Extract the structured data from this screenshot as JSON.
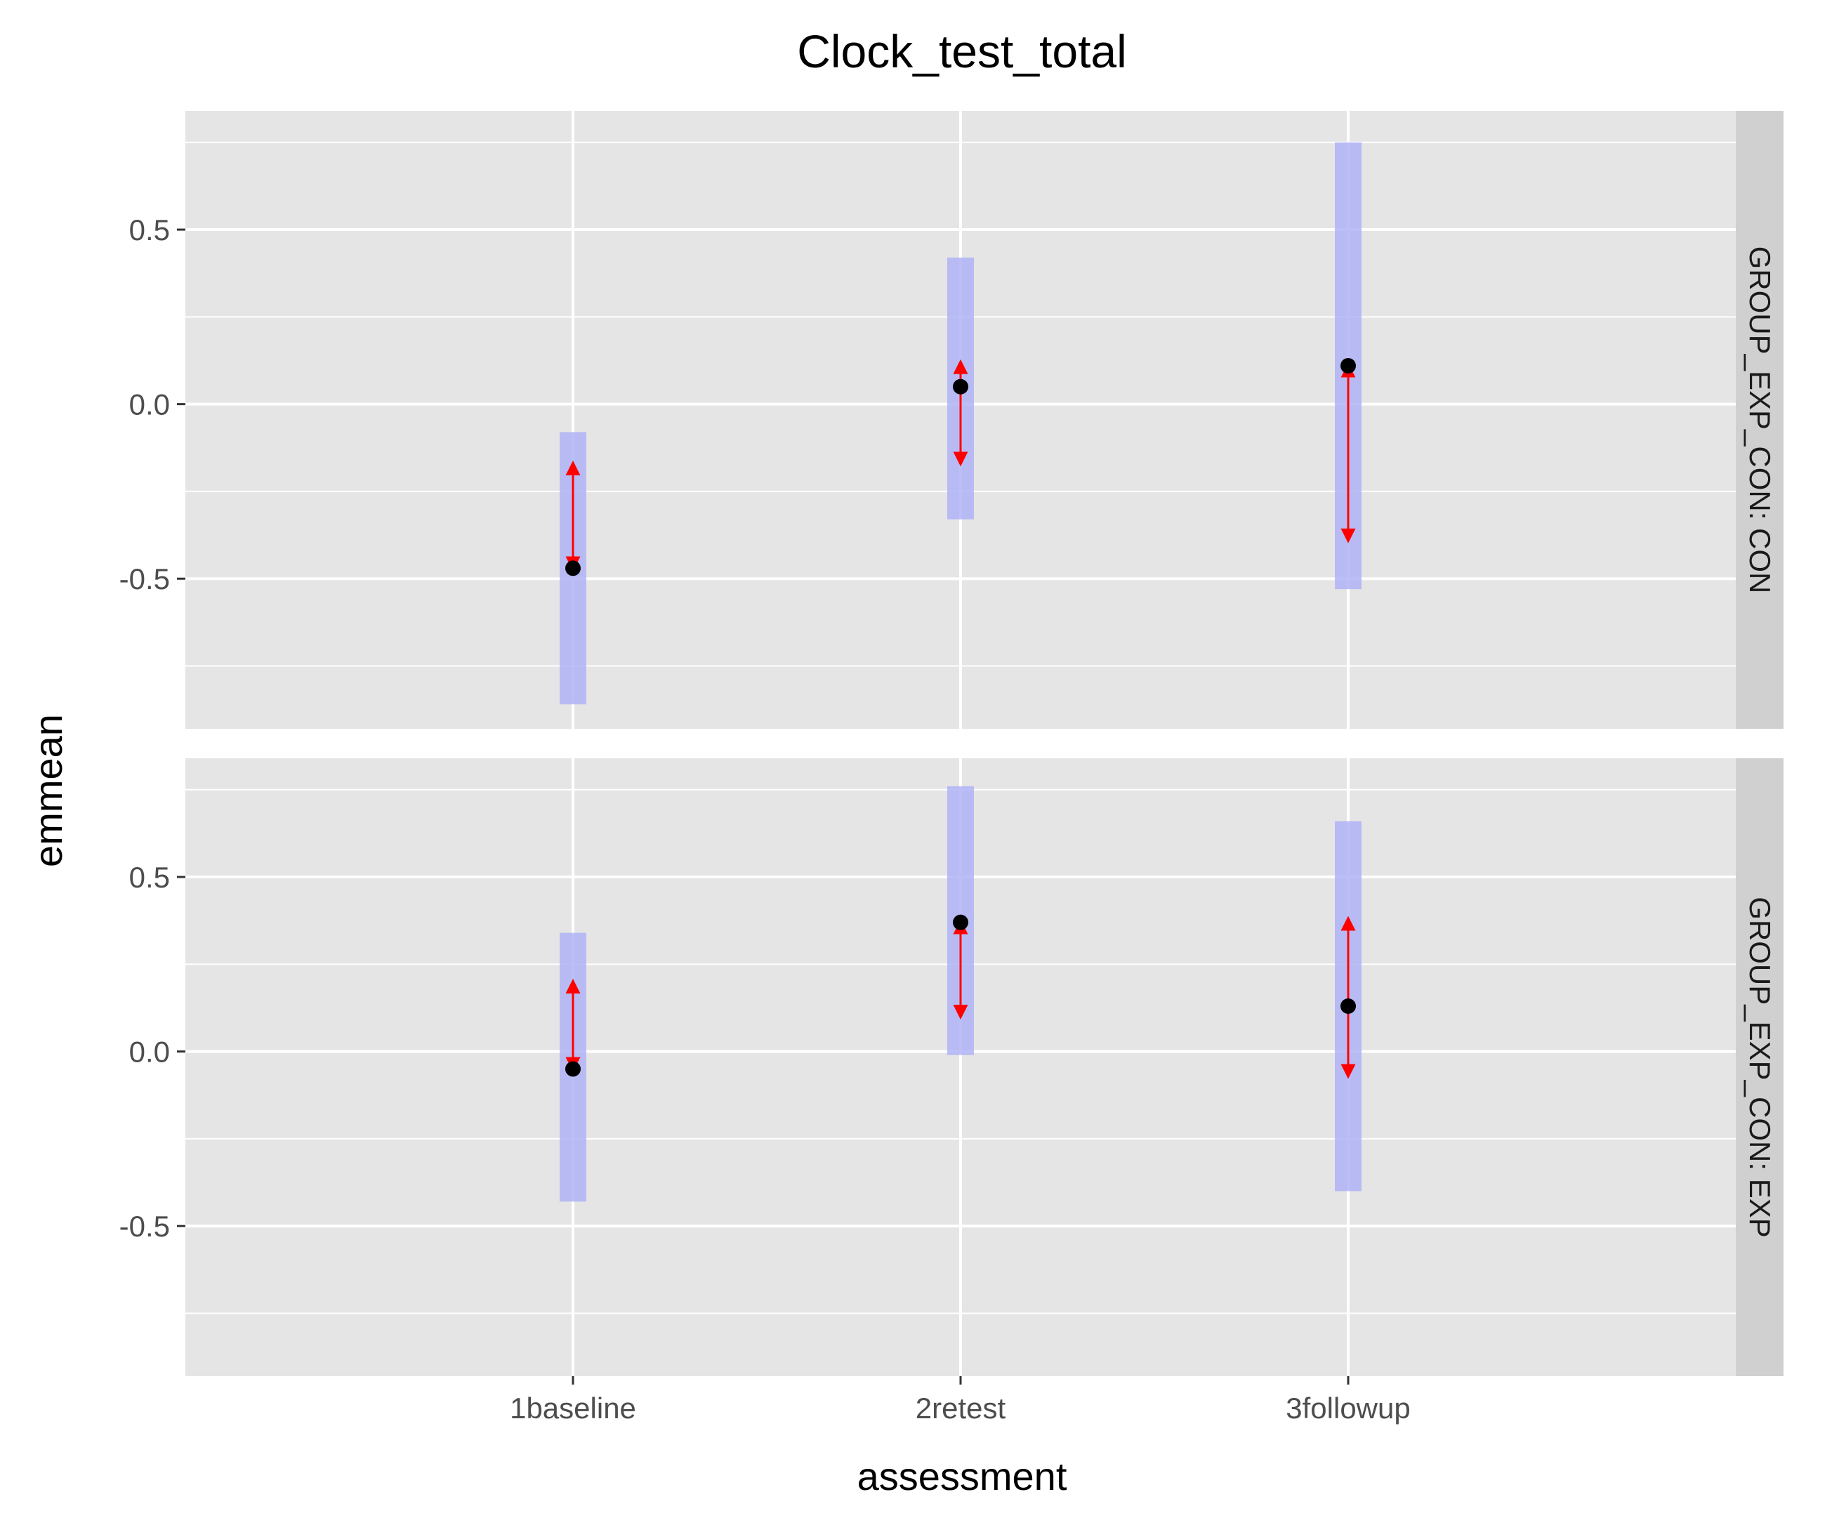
{
  "chart_data": {
    "type": "scatter",
    "title": "Clock_test_total",
    "xlabel": "assessment",
    "ylabel": "emmean",
    "categories": [
      "1baseline",
      "2retest",
      "3followup"
    ],
    "ylim": [
      -0.93,
      0.84
    ],
    "yticks": [
      -0.5,
      0.0,
      0.5
    ],
    "ytick_labels": [
      "-0.5",
      "0.0",
      "0.5"
    ],
    "grid": true,
    "colors": {
      "panel_bg": "#e5e5e5",
      "grid": "#ffffff",
      "strip_bg": "#d0d0d0",
      "ci_bar": "#b0b4f6",
      "arrow": "#ff0000",
      "point": "#000000"
    },
    "panels": [
      {
        "strip": "GROUP_EXP_CON: CON",
        "points": [
          {
            "x": "1baseline",
            "emmean": -0.47,
            "ci": [
              -0.86,
              -0.08
            ],
            "arrow": [
              -0.47,
              -0.17
            ]
          },
          {
            "x": "2retest",
            "emmean": 0.05,
            "ci": [
              -0.33,
              0.42
            ],
            "arrow": [
              -0.17,
              0.12
            ]
          },
          {
            "x": "3followup",
            "emmean": 0.11,
            "ci": [
              -0.53,
              0.75
            ],
            "arrow": [
              -0.39,
              0.11
            ]
          }
        ]
      },
      {
        "strip": "GROUP_EXP_CON: EXP",
        "points": [
          {
            "x": "1baseline",
            "emmean": -0.05,
            "ci": [
              -0.43,
              0.34
            ],
            "arrow": [
              -0.05,
              0.2
            ]
          },
          {
            "x": "2retest",
            "emmean": 0.37,
            "ci": [
              -0.01,
              0.76
            ],
            "arrow": [
              0.1,
              0.37
            ]
          },
          {
            "x": "3followup",
            "emmean": 0.13,
            "ci": [
              -0.4,
              0.66
            ],
            "arrow": [
              -0.07,
              0.38
            ]
          }
        ]
      }
    ]
  }
}
